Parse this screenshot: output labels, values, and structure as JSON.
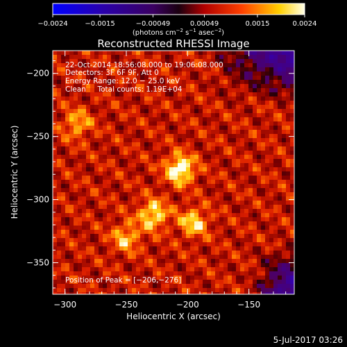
{
  "chart_data": {
    "type": "heatmap",
    "title": "Reconstructed RHESSI Image",
    "xlabel": "Heliocentric X (arcsec)",
    "ylabel": "Heliocentric Y (arcsec)",
    "xlim": [
      -310,
      -113
    ],
    "ylim": [
      -375,
      -182
    ],
    "x_ticks": [
      -300,
      -250,
      -200,
      -150
    ],
    "y_ticks": [
      -200,
      -250,
      -300,
      -350
    ],
    "x_tick_labels": [
      "−300",
      "−250",
      "−200",
      "−150"
    ],
    "y_tick_labels": [
      "−200",
      "−250",
      "−300",
      "−350"
    ],
    "colorbar": {
      "range": [
        -0.0024,
        0.0024
      ],
      "ticks": [
        -0.0024,
        -0.0015,
        -0.00049,
        0.00049,
        0.0015,
        0.0024
      ],
      "tick_labels": [
        "−0.0024",
        "−0.0015",
        "−0.00049",
        "0.00049",
        "0.0015",
        "0.0024"
      ],
      "unit_prefix": "(photons cm",
      "unit_exp1": "−2",
      "unit_mid": " s",
      "unit_exp2": "−1",
      "unit_mid2": " asec",
      "unit_exp3": "−2",
      "unit_suffix": ")"
    },
    "sources": [
      {
        "x": -206,
        "y": -276,
        "relative_intensity": 1.0
      },
      {
        "x": -228,
        "y": -312,
        "relative_intensity": 0.8
      },
      {
        "x": -195,
        "y": -318,
        "relative_intensity": 0.7
      },
      {
        "x": -250,
        "y": -330,
        "relative_intensity": 0.6
      },
      {
        "x": -290,
        "y": -240,
        "relative_intensity": 0.55
      }
    ],
    "annotations": {
      "time_range": "22-Oct-2014 18:56:08.000 to 19:06:08.000",
      "detectors": "Detectors: 3F 6F 9F, Att 0",
      "energy": "Energy Range: 12.0 − 25.0 keV",
      "clean": "Clean     Total counts: 1.19E+04",
      "peak": "Position of Peak = [−206,−276]"
    }
  },
  "footer": {
    "date": "5-Jul-2017 03:26"
  },
  "colors": {
    "background": "#000000",
    "text": "#ffffff"
  }
}
